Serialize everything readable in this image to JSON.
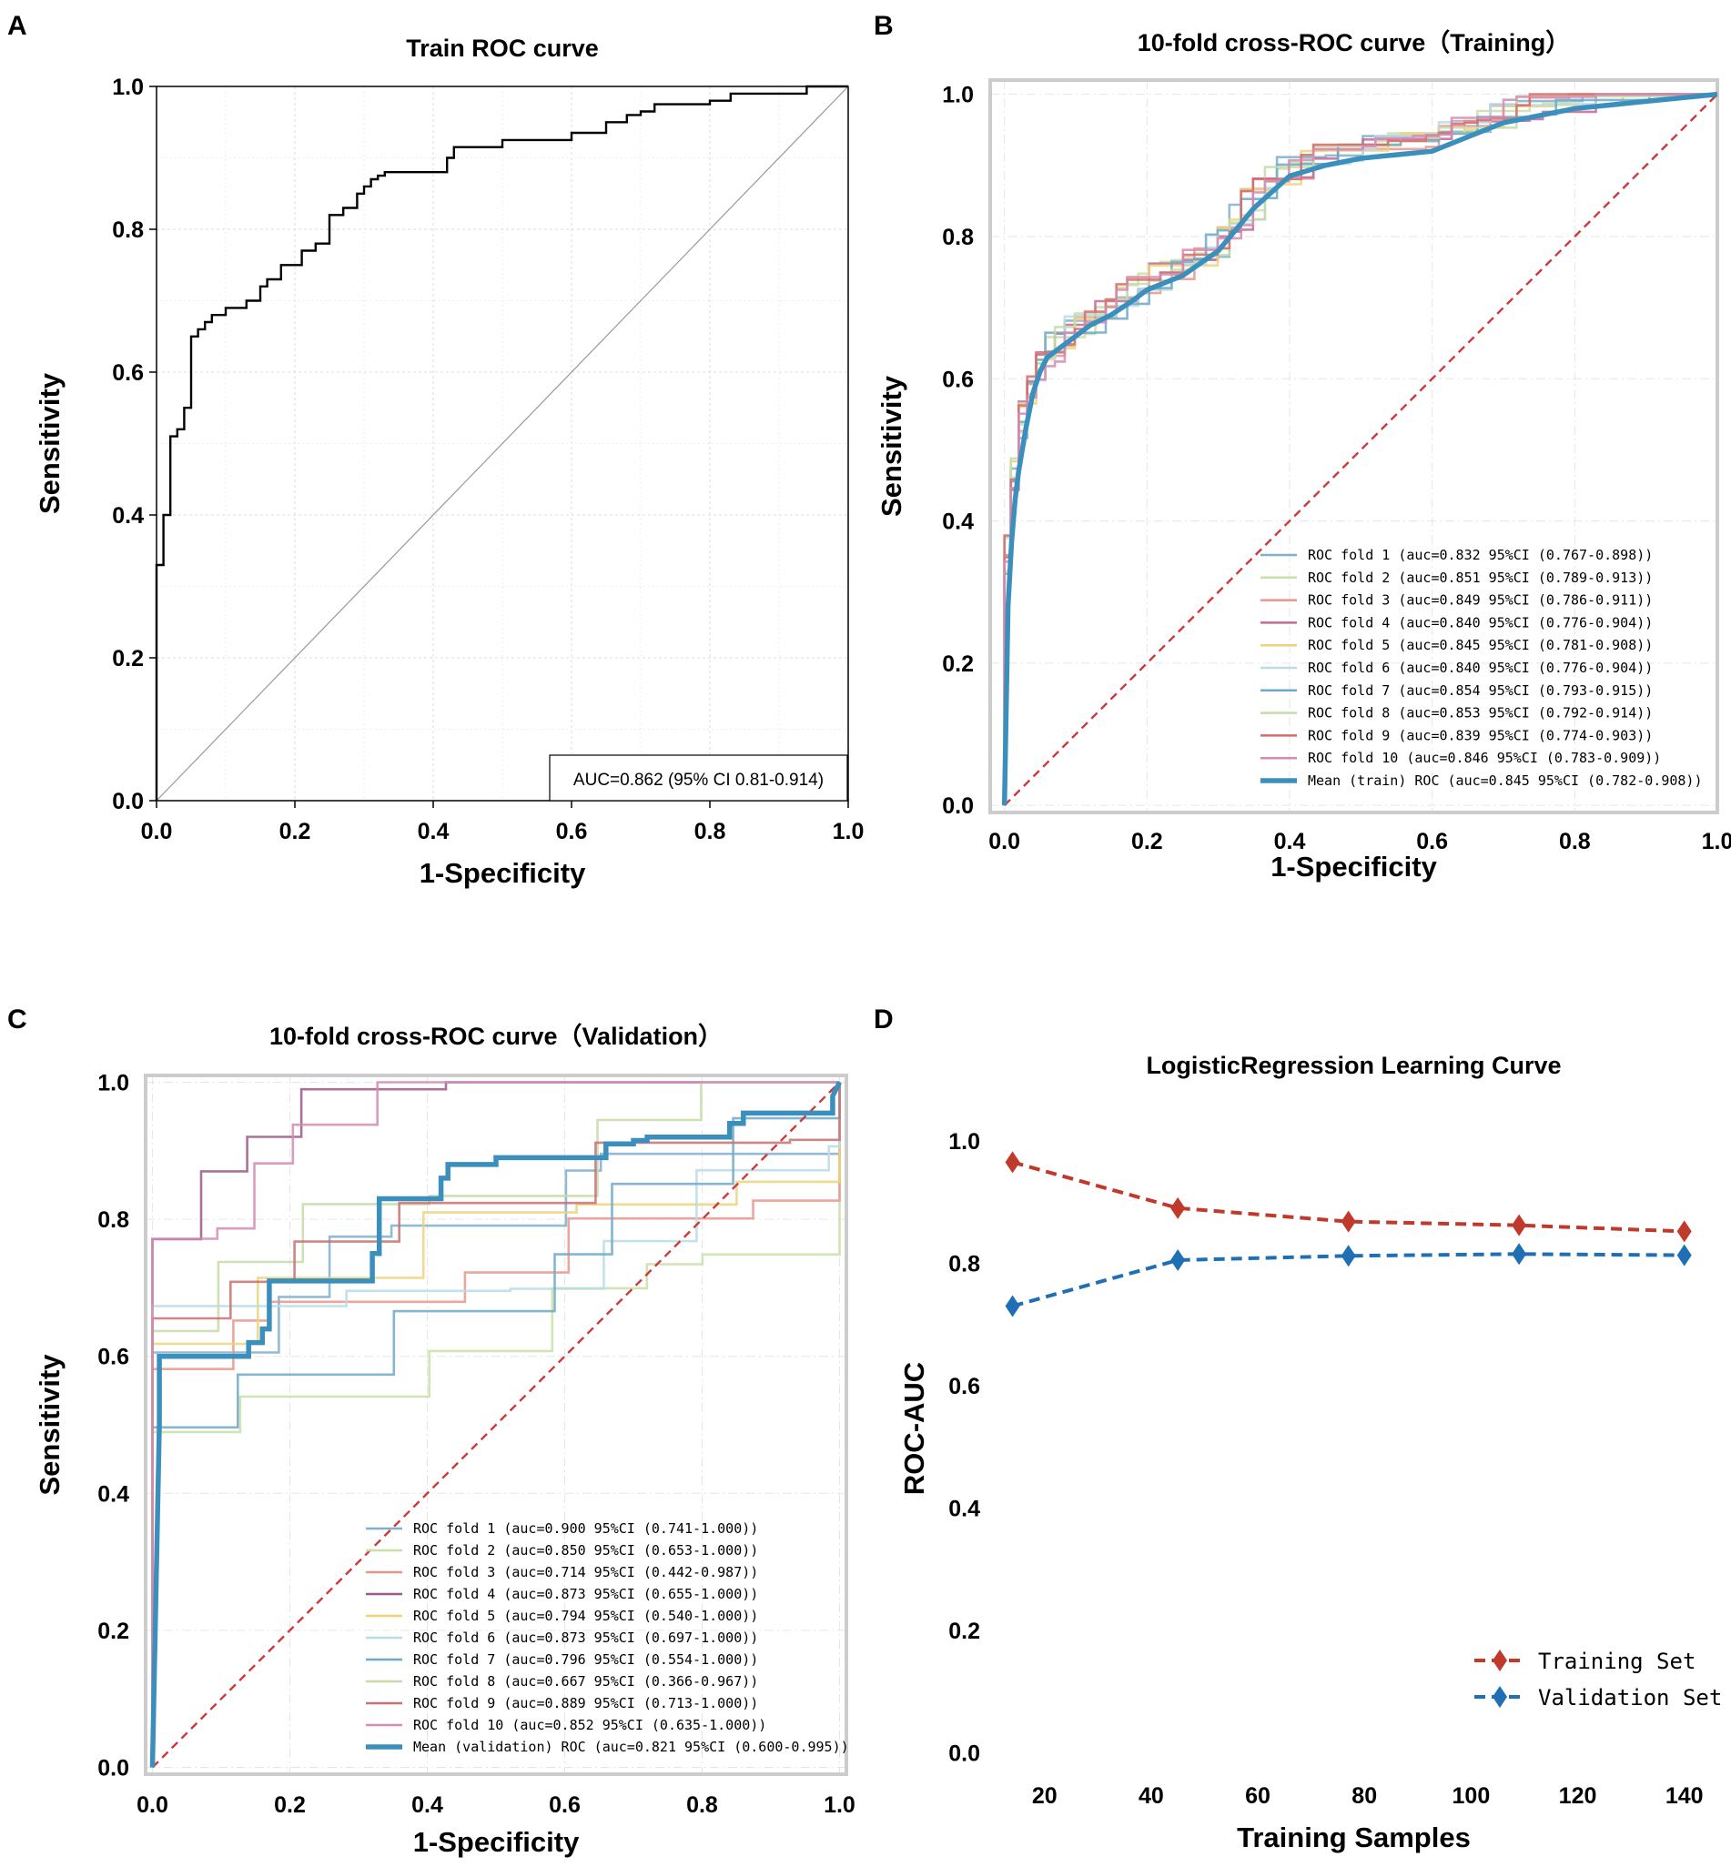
{
  "chart_data": [
    {
      "panel": "A",
      "type": "line",
      "title": "Train ROC curve",
      "xlabel": "1-Specificity",
      "ylabel": "Sensitivity",
      "xlim": [
        0,
        1
      ],
      "ylim": [
        0,
        1
      ],
      "xticks": [
        "0.0",
        "0.2",
        "0.4",
        "0.6",
        "0.8",
        "1.0"
      ],
      "yticks": [
        "0.0",
        "0.2",
        "0.4",
        "0.6",
        "0.8",
        "1.0"
      ],
      "grid": true,
      "annotation": "AUC=0.862 (95% CI 0.81-0.914)",
      "series": [
        {
          "name": "ROC",
          "x": [
            0,
            0,
            0.01,
            0.01,
            0.02,
            0.02,
            0.03,
            0.03,
            0.04,
            0.04,
            0.05,
            0.05,
            0.06,
            0.06,
            0.07,
            0.07,
            0.08,
            0.08,
            0.1,
            0.1,
            0.13,
            0.13,
            0.15,
            0.15,
            0.16,
            0.16,
            0.18,
            0.18,
            0.21,
            0.21,
            0.23,
            0.23,
            0.25,
            0.25,
            0.27,
            0.27,
            0.29,
            0.29,
            0.3,
            0.3,
            0.31,
            0.31,
            0.32,
            0.32,
            0.33,
            0.33,
            0.42,
            0.42,
            0.43,
            0.43,
            0.5,
            0.5,
            0.6,
            0.6,
            0.65,
            0.65,
            0.68,
            0.68,
            0.7,
            0.7,
            0.72,
            0.72,
            0.8,
            0.8,
            0.83,
            0.83,
            0.94,
            0.94,
            1.0
          ],
          "y": [
            0,
            0.33,
            0.33,
            0.4,
            0.4,
            0.51,
            0.51,
            0.52,
            0.52,
            0.55,
            0.55,
            0.65,
            0.65,
            0.66,
            0.66,
            0.67,
            0.67,
            0.68,
            0.68,
            0.69,
            0.69,
            0.7,
            0.7,
            0.72,
            0.72,
            0.73,
            0.73,
            0.75,
            0.75,
            0.77,
            0.77,
            0.78,
            0.78,
            0.82,
            0.82,
            0.83,
            0.83,
            0.85,
            0.85,
            0.86,
            0.86,
            0.87,
            0.87,
            0.875,
            0.875,
            0.88,
            0.88,
            0.9,
            0.9,
            0.915,
            0.915,
            0.925,
            0.925,
            0.935,
            0.935,
            0.95,
            0.95,
            0.96,
            0.96,
            0.965,
            0.965,
            0.975,
            0.975,
            0.98,
            0.98,
            0.99,
            0.99,
            1.0,
            1.0
          ]
        }
      ]
    },
    {
      "panel": "B",
      "type": "line",
      "title": "10-fold cross-ROC curve（Training）",
      "xlabel": "1-Specificity",
      "ylabel": "Sensitivity",
      "xlim": [
        -0.02,
        1.0
      ],
      "ylim": [
        -0.01,
        1.02
      ],
      "xticks": [
        "0.0",
        "0.2",
        "0.4",
        "0.6",
        "0.8",
        "1.0"
      ],
      "yticks": [
        "0.0",
        "0.2",
        "0.4",
        "0.6",
        "0.8",
        "1.0"
      ],
      "legend_position": "lower-right",
      "legend": [
        "ROC fold    1 (auc=0.832 95%CI (0.767-0.898))",
        "ROC fold    2 (auc=0.851 95%CI (0.789-0.913))",
        "ROC fold    3 (auc=0.849 95%CI (0.786-0.911))",
        "ROC fold    4 (auc=0.840 95%CI (0.776-0.904))",
        "ROC fold    5 (auc=0.845 95%CI (0.781-0.908))",
        "ROC fold    6 (auc=0.840 95%CI (0.776-0.904))",
        "ROC fold    7 (auc=0.854 95%CI (0.793-0.915))",
        "ROC fold    8 (auc=0.853 95%CI (0.792-0.914))",
        "ROC fold    9 (auc=0.839 95%CI (0.774-0.903))",
        "ROC fold   10 (auc=0.846 95%CI (0.783-0.909))",
        "Mean (train) ROC (auc=0.845 95%CI (0.782-0.908))"
      ],
      "fold_colors": [
        "#7fb0cc",
        "#c9dfa8",
        "#e8968c",
        "#c46a96",
        "#ecd37a",
        "#b8dce8",
        "#6ea9c8",
        "#c5dba8",
        "#d96a6a",
        "#d48bb4"
      ],
      "mean_color": "#3a8fbd",
      "mean_curve": {
        "x": [
          0,
          0.005,
          0.01,
          0.015,
          0.02,
          0.03,
          0.04,
          0.05,
          0.06,
          0.08,
          0.1,
          0.12,
          0.15,
          0.18,
          0.2,
          0.25,
          0.3,
          0.35,
          0.4,
          0.45,
          0.5,
          0.55,
          0.6,
          0.65,
          0.7,
          0.75,
          0.8,
          0.85,
          0.9,
          0.95,
          1.0
        ],
        "y": [
          0,
          0.28,
          0.37,
          0.43,
          0.47,
          0.53,
          0.58,
          0.61,
          0.63,
          0.645,
          0.66,
          0.675,
          0.69,
          0.71,
          0.725,
          0.745,
          0.78,
          0.84,
          0.885,
          0.9,
          0.91,
          0.915,
          0.92,
          0.94,
          0.96,
          0.97,
          0.98,
          0.985,
          0.99,
          0.995,
          1.0
        ]
      },
      "chance_line": {
        "x": [
          0,
          1
        ],
        "y": [
          0,
          1
        ]
      }
    },
    {
      "panel": "C",
      "type": "line",
      "title": "10-fold cross-ROC curve（Validation）",
      "xlabel": "1-Specificity",
      "ylabel": "Sensitivity",
      "xlim": [
        -0.01,
        1.01
      ],
      "ylim": [
        -0.01,
        1.01
      ],
      "xticks": [
        "0.0",
        "0.2",
        "0.4",
        "0.6",
        "0.8",
        "1.0"
      ],
      "yticks": [
        "0.0",
        "0.2",
        "0.4",
        "0.6",
        "0.8",
        "1.0"
      ],
      "legend_position": "lower-right",
      "legend": [
        "ROC fold    1 (auc=0.900 95%CI (0.741-1.000))",
        "ROC fold    2 (auc=0.850 95%CI (0.653-1.000))",
        "ROC fold    3 (auc=0.714 95%CI (0.442-0.987))",
        "ROC fold    4 (auc=0.873 95%CI (0.655-1.000))",
        "ROC fold    5 (auc=0.794 95%CI (0.540-1.000))",
        "ROC fold    6 (auc=0.873 95%CI (0.697-1.000))",
        "ROC fold    7 (auc=0.796 95%CI (0.554-1.000))",
        "ROC fold    8 (auc=0.667 95%CI (0.366-0.967))",
        "ROC fold    9 (auc=0.889 95%CI (0.713-1.000))",
        "ROC fold   10 (auc=0.852 95%CI (0.635-1.000))",
        "Mean (validation) ROC (auc=0.821 95%CI (0.600-0.995))"
      ],
      "fold_colors": [
        "#7fb0cc",
        "#c9dfa8",
        "#e8968c",
        "#9a5a86",
        "#ecd37a",
        "#b8dce8",
        "#6ea9c8",
        "#c5dba8",
        "#c97070",
        "#d48bb4"
      ],
      "mean_color": "#3a8fbd",
      "mean_curve": {
        "x": [
          0,
          0.01,
          0.01,
          0.14,
          0.14,
          0.16,
          0.16,
          0.17,
          0.17,
          0.32,
          0.32,
          0.33,
          0.33,
          0.42,
          0.42,
          0.43,
          0.43,
          0.5,
          0.5,
          0.53,
          0.53,
          0.66,
          0.66,
          0.7,
          0.7,
          0.72,
          0.72,
          0.84,
          0.84,
          0.86,
          0.86,
          0.99,
          0.99,
          1.0
        ],
        "y": [
          0,
          0.5,
          0.6,
          0.6,
          0.62,
          0.62,
          0.64,
          0.64,
          0.71,
          0.71,
          0.75,
          0.75,
          0.83,
          0.83,
          0.86,
          0.86,
          0.88,
          0.88,
          0.89,
          0.89,
          0.89,
          0.89,
          0.91,
          0.91,
          0.915,
          0.915,
          0.92,
          0.92,
          0.94,
          0.94,
          0.955,
          0.955,
          0.98,
          1.0
        ]
      },
      "chance_line": {
        "x": [
          0,
          1
        ],
        "y": [
          0,
          1
        ]
      }
    },
    {
      "panel": "D",
      "type": "line",
      "title": "LogisticRegression Learning Curve",
      "xlabel": "Training Samples",
      "ylabel": "ROC-AUC",
      "xlim": [
        11,
        145
      ],
      "ylim": [
        -0.02,
        1.08
      ],
      "xticks": [
        "20",
        "40",
        "60",
        "80",
        "100",
        "120",
        "140"
      ],
      "yticks": [
        "0.0",
        "0.2",
        "0.4",
        "0.6",
        "0.8",
        "1.0"
      ],
      "legend_position": "lower-right",
      "x": [
        14,
        45,
        77,
        109,
        140
      ],
      "series": [
        {
          "name": "Training Set",
          "color": "#c0392b",
          "values": [
            0.965,
            0.89,
            0.868,
            0.862,
            0.852
          ]
        },
        {
          "name": "Validation Set",
          "color": "#1f6fb4",
          "values": [
            0.73,
            0.805,
            0.812,
            0.815,
            0.813
          ]
        }
      ]
    }
  ]
}
